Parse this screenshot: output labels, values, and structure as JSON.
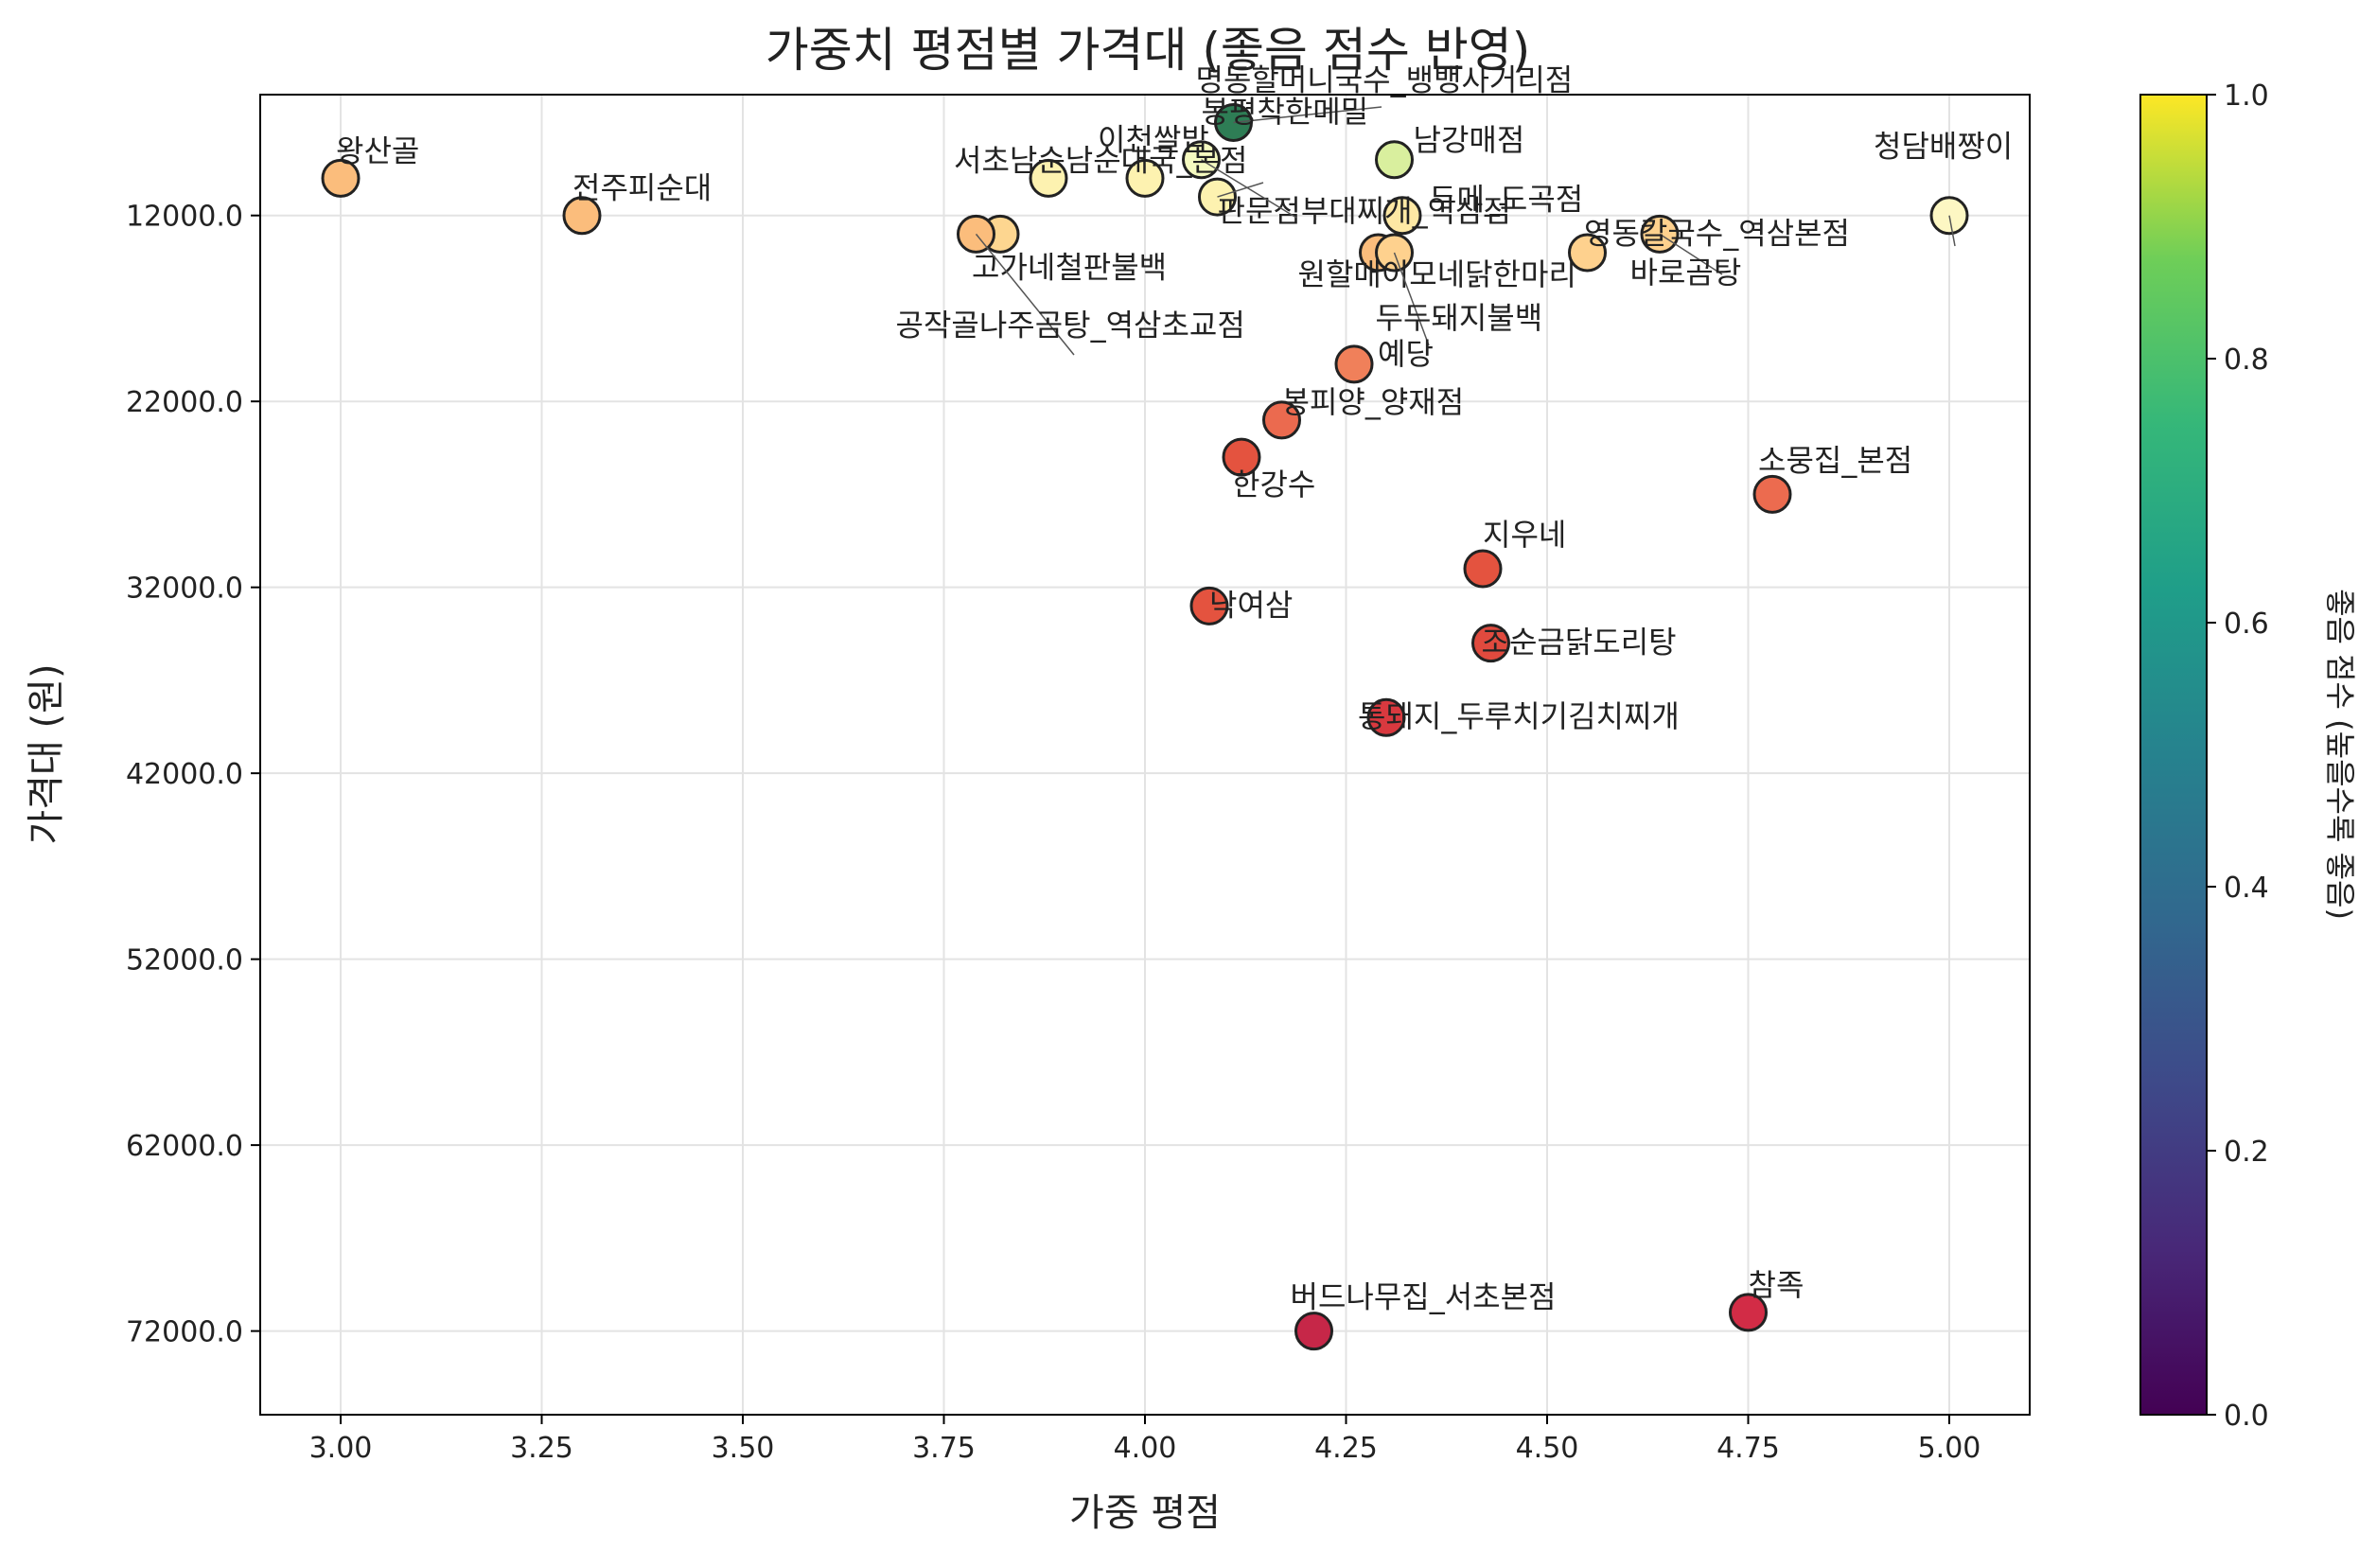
{
  "chart_data": {
    "type": "scatter",
    "title": "가중치 평점별 가격대 (좋음 점수 반영)",
    "xlabel": "가중 평점",
    "ylabel": "가격대 (원)",
    "xlim": [
      2.9,
      5.1
    ],
    "ylim": [
      76500,
      5500
    ],
    "y_inverted": true,
    "grid": true,
    "x_ticks": [
      3.0,
      3.25,
      3.5,
      3.75,
      4.0,
      4.25,
      4.5,
      4.75,
      5.0
    ],
    "x_tick_labels": [
      "3.00",
      "3.25",
      "3.50",
      "3.75",
      "4.00",
      "4.25",
      "4.50",
      "4.75",
      "5.00"
    ],
    "y_ticks": [
      12000,
      22000,
      32000,
      42000,
      52000,
      62000,
      72000
    ],
    "y_tick_labels": [
      "12000.0",
      "22000.0",
      "32000.0",
      "42000.0",
      "52000.0",
      "62000.0",
      "72000.0"
    ],
    "colorbar": {
      "label": "좋음 점수 (높을수록 좋음)",
      "range": [
        0.0,
        1.0
      ],
      "ticks": [
        0.0,
        0.2,
        0.4,
        0.6,
        0.8,
        1.0
      ],
      "tick_labels": [
        "0.0",
        "0.2",
        "0.4",
        "0.6",
        "0.8",
        "1.0"
      ],
      "colormap_display": "viridis"
    },
    "points": [
      {
        "name": "명동할머니국수_뱅뱅사거리점",
        "x": 4.11,
        "y": 7000,
        "color": "#2e7d55"
      },
      {
        "name": "판문점부대찌개_역삼점",
        "x": 4.09,
        "y": 11000,
        "color": "#fdf2b0"
      },
      {
        "name": "이천쌀밥",
        "x": 4.0,
        "y": 10000,
        "color": "#fdf2b0"
      },
      {
        "name": "봉평착한메밀",
        "x": 4.07,
        "y": 9000,
        "color": "#f5fac0"
      },
      {
        "name": "남강매점",
        "x": 4.31,
        "y": 9000,
        "color": "#d9ef9e"
      },
      {
        "name": "청담배짱이",
        "x": 5.0,
        "y": 12000,
        "color": "#fdf7c3"
      },
      {
        "name": "왕산골",
        "x": 3.0,
        "y": 10000,
        "color": "#fbbd7c"
      },
      {
        "name": "전주피순대",
        "x": 3.3,
        "y": 12000,
        "color": "#fbbd7c"
      },
      {
        "name": "서초남순남순대국_본점",
        "x": 3.88,
        "y": 10000,
        "color": "#fdf2b0"
      },
      {
        "name": "고가네철판불백",
        "x": 3.82,
        "y": 13000,
        "color": "#fdd690"
      },
      {
        "name": "공작골나주곰탕_역삼초교점",
        "x": 3.79,
        "y": 13000,
        "color": "#fbbd7c"
      },
      {
        "name": "두메_도곡점",
        "x": 4.32,
        "y": 12000,
        "color": "#fde8a4"
      },
      {
        "name": "영동칼국수_역삼본점",
        "x": 4.64,
        "y": 13000,
        "color": "#fed18e"
      },
      {
        "name": "바로곰탕",
        "x": 4.55,
        "y": 14000,
        "color": "#fed18e"
      },
      {
        "name": "원할매이모네닭한마리",
        "x": 4.29,
        "y": 14000,
        "color": "#fbbd7c"
      },
      {
        "name": "두두돼지불백",
        "x": 4.31,
        "y": 14000,
        "color": "#fed18e"
      },
      {
        "name": "예당",
        "x": 4.26,
        "y": 20000,
        "color": "#f0805a"
      },
      {
        "name": "봉피양_양재점",
        "x": 4.17,
        "y": 23000,
        "color": "#eb6a4f"
      },
      {
        "name": "한강수",
        "x": 4.12,
        "y": 25000,
        "color": "#e4533f"
      },
      {
        "name": "소뭉집_본점",
        "x": 4.78,
        "y": 27000,
        "color": "#ec6b4f"
      },
      {
        "name": "지우네",
        "x": 4.42,
        "y": 31000,
        "color": "#e4533f"
      },
      {
        "name": "낙여삼",
        "x": 4.08,
        "y": 33000,
        "color": "#e4533f"
      },
      {
        "name": "조순금닭도리탕",
        "x": 4.43,
        "y": 35000,
        "color": "#e04a3e"
      },
      {
        "name": "통돼지_두루치기김치찌개",
        "x": 4.3,
        "y": 39000,
        "color": "#d9393f"
      },
      {
        "name": "버드나무집_서초본점",
        "x": 4.21,
        "y": 72000,
        "color": "#c62748"
      },
      {
        "name": "참족",
        "x": 4.75,
        "y": 71000,
        "color": "#d22c46"
      }
    ]
  }
}
